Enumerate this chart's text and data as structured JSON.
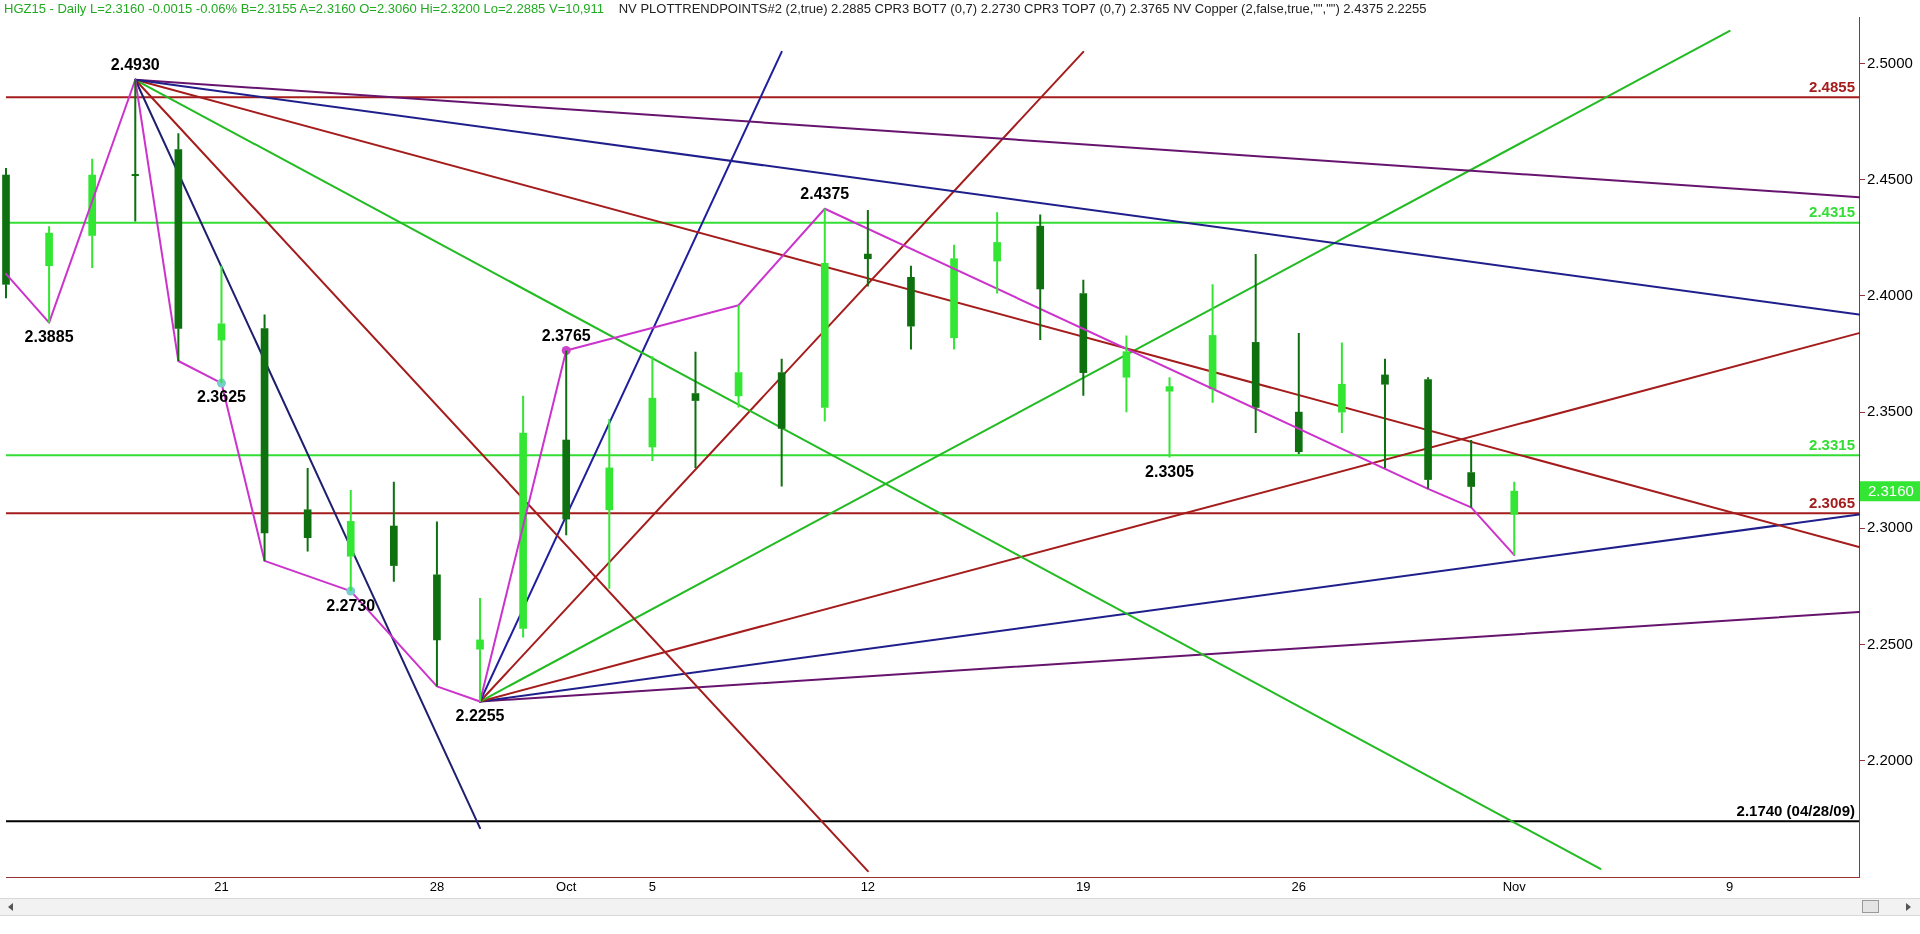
{
  "chart_data": {
    "type": "candlestick",
    "title": "HGZ15 - Daily L=2.3160 -0.0015 -0.06% B=2.3155 A=2.3160 O=2.3060 Hi=2.3200 Lo=2.2885 V=10,911",
    "subtitle": "NV PLOTTRENDPOINTS#2 (2,true) 2.2885 CPR3 BOT7 (0,7) 2.2730 CPR3 TOP7 (0,7) 2.3765 NV Copper (2,false,true,\"\",\"\") 2.4375 2.2255",
    "categories": [
      null,
      null,
      null,
      null,
      null,
      "21",
      null,
      null,
      null,
      null,
      "28",
      null,
      null,
      "Oct",
      null,
      "5",
      null,
      null,
      null,
      null,
      "12",
      null,
      null,
      null,
      null,
      "19",
      null,
      null,
      null,
      null,
      "26",
      null,
      null,
      null,
      null,
      "Nov",
      null,
      null,
      null,
      null,
      "9",
      null,
      null,
      null
    ],
    "ohlc": [
      [
        2.452,
        2.455,
        2.399,
        2.405
      ],
      [
        2.413,
        2.43,
        2.3885,
        2.427
      ],
      [
        2.426,
        2.459,
        2.412,
        2.452
      ],
      [
        2.452,
        2.493,
        2.432,
        2.452
      ],
      [
        2.463,
        2.47,
        2.372,
        2.386
      ],
      [
        2.381,
        2.413,
        2.3625,
        2.388
      ],
      [
        2.386,
        2.392,
        2.286,
        2.298
      ],
      [
        2.308,
        2.326,
        2.29,
        2.296
      ],
      [
        2.288,
        2.3165,
        2.273,
        2.303
      ],
      [
        2.301,
        2.32,
        2.277,
        2.284
      ],
      [
        2.28,
        2.303,
        2.232,
        2.252
      ],
      [
        2.248,
        2.27,
        2.2255,
        2.252
      ],
      [
        2.257,
        2.357,
        2.253,
        2.341
      ],
      [
        2.338,
        2.3765,
        2.297,
        2.304
      ],
      [
        2.308,
        2.347,
        2.274,
        2.326
      ],
      [
        2.335,
        2.374,
        2.329,
        2.356
      ],
      [
        2.358,
        2.376,
        2.326,
        2.355
      ],
      [
        2.357,
        2.396,
        2.352,
        2.367
      ],
      [
        2.367,
        2.373,
        2.318,
        2.343
      ],
      [
        2.352,
        2.4375,
        2.346,
        2.414
      ],
      [
        2.418,
        2.437,
        2.404,
        2.416
      ],
      [
        2.408,
        2.413,
        2.377,
        2.387
      ],
      [
        2.382,
        2.422,
        2.377,
        2.416
      ],
      [
        2.415,
        2.436,
        2.401,
        2.423
      ],
      [
        2.43,
        2.435,
        2.381,
        2.403
      ],
      [
        2.401,
        2.407,
        2.357,
        2.367
      ],
      [
        2.365,
        2.383,
        2.35,
        2.376
      ],
      [
        2.359,
        2.365,
        2.3305,
        2.361
      ],
      [
        2.36,
        2.405,
        2.354,
        2.383
      ],
      [
        2.38,
        2.418,
        2.341,
        2.352
      ],
      [
        2.35,
        2.384,
        2.332,
        2.333
      ],
      [
        2.35,
        2.38,
        2.341,
        2.362
      ],
      [
        2.366,
        2.373,
        2.326,
        2.362
      ],
      [
        2.364,
        2.365,
        2.317,
        2.321
      ],
      [
        2.324,
        2.338,
        2.309,
        2.318
      ],
      [
        2.306,
        2.32,
        2.2885,
        2.316
      ],
      null,
      null,
      null,
      null,
      null,
      null,
      null,
      null
    ],
    "colors": [
      "#0e700e",
      "#33e633",
      "#33e633",
      "#0e700e",
      "#0e700e",
      "#33e633",
      "#0e700e",
      "#0e700e",
      "#33e633",
      "#0e700e",
      "#0e700e",
      "#33e633",
      "#33e633",
      "#0e700e",
      "#33e633",
      "#33e633",
      "#0e700e",
      "#33e633",
      "#0e700e",
      "#33e633",
      "#0e700e",
      "#0e700e",
      "#33e633",
      "#33e633",
      "#0e700e",
      "#0e700e",
      "#33e633",
      "#33e633",
      "#33e633",
      "#0e700e",
      "#0e700e",
      "#33e633",
      "#0e700e",
      "#0e700e",
      "#0e700e",
      "#33e633",
      null,
      null,
      null,
      null,
      null,
      null,
      null,
      null
    ],
    "series": [
      {
        "type": "line",
        "color": "#1f1f8c",
        "values": [
          null,
          null,
          null,
          2.493,
          null,
          null,
          null,
          null,
          null,
          null,
          null,
          null,
          null,
          null,
          null,
          null,
          null,
          null,
          null,
          null,
          null,
          null,
          null,
          null,
          null,
          null,
          null,
          null,
          null,
          null,
          null,
          null,
          null,
          null,
          null,
          null,
          null,
          null,
          null,
          null,
          null,
          null,
          null,
          2.392
        ]
      },
      {
        "type": "line",
        "color": "#cc33cc",
        "values": [
          2.4095,
          2.3885,
          null,
          2.493,
          2.372,
          2.3625,
          2.286,
          null,
          2.273,
          null,
          2.232,
          2.2255,
          null,
          2.3765,
          null,
          null,
          null,
          2.396,
          null,
          2.4375,
          null,
          null,
          null,
          null,
          null,
          null,
          null,
          null,
          null,
          null,
          null,
          null,
          null,
          2.317,
          2.309,
          2.2885,
          null,
          null,
          null,
          null,
          null,
          null,
          null,
          null
        ]
      },
      {
        "type": "line",
        "color": "#1f1f70",
        "values": [
          null,
          null,
          null,
          2.493,
          null,
          null,
          null,
          null,
          null,
          null,
          null,
          2.171,
          null,
          null,
          null,
          null,
          null,
          null,
          null,
          null,
          null,
          null,
          null,
          null,
          null,
          null,
          null,
          null,
          null,
          null,
          null,
          null,
          null,
          null,
          null,
          null,
          null,
          null,
          null,
          null,
          null,
          null,
          null,
          null
        ]
      },
      {
        "type": "line",
        "color": "#a51c1c",
        "values": [
          null,
          null,
          null,
          2.493,
          null,
          null,
          null,
          null,
          null,
          null,
          null,
          null,
          null,
          null,
          null,
          null,
          null,
          null,
          null,
          null,
          2.1525,
          null,
          null,
          null,
          null,
          null,
          null,
          null,
          null,
          null,
          null,
          null,
          null,
          null,
          null,
          null,
          null,
          null,
          null,
          null,
          null,
          null,
          null,
          null
        ]
      },
      {
        "type": "line",
        "color": "#22bb22",
        "values": [
          null,
          null,
          null,
          2.493,
          null,
          null,
          null,
          null,
          null,
          null,
          null,
          null,
          null,
          null,
          null,
          null,
          null,
          null,
          null,
          null,
          null,
          null,
          null,
          null,
          null,
          null,
          null,
          null,
          null,
          null,
          null,
          null,
          null,
          null,
          null,
          null,
          null,
          2.1535,
          null,
          null,
          null,
          null,
          null,
          null
        ]
      },
      {
        "type": "line",
        "color": "#a51c1c",
        "values": [
          null,
          null,
          null,
          2.493,
          null,
          null,
          null,
          null,
          null,
          null,
          null,
          null,
          null,
          null,
          null,
          null,
          null,
          null,
          null,
          null,
          null,
          null,
          null,
          null,
          null,
          null,
          null,
          null,
          null,
          null,
          null,
          null,
          null,
          null,
          null,
          null,
          null,
          null,
          null,
          null,
          null,
          null,
          null,
          2.292
        ]
      },
      {
        "type": "line",
        "color": "#66146e",
        "values": [
          null,
          null,
          null,
          2.493,
          null,
          null,
          null,
          null,
          null,
          null,
          null,
          null,
          null,
          null,
          null,
          null,
          null,
          null,
          null,
          null,
          null,
          null,
          null,
          null,
          null,
          null,
          null,
          null,
          null,
          null,
          null,
          null,
          null,
          null,
          null,
          null,
          null,
          null,
          null,
          null,
          null,
          null,
          null,
          2.4425
        ]
      },
      {
        "type": "line",
        "color": "#1f1f9e",
        "values": [
          null,
          null,
          null,
          null,
          null,
          null,
          null,
          null,
          null,
          null,
          null,
          2.2255,
          null,
          null,
          null,
          null,
          null,
          null,
          2.505,
          null,
          null,
          null,
          null,
          null,
          null,
          null,
          null,
          null,
          null,
          null,
          null,
          null,
          null,
          null,
          null,
          null,
          null,
          null,
          null,
          null,
          null,
          null,
          null,
          null
        ]
      },
      {
        "type": "line",
        "color": "#a51c1c",
        "values": [
          null,
          null,
          null,
          null,
          null,
          null,
          null,
          null,
          null,
          null,
          null,
          2.2255,
          null,
          null,
          null,
          null,
          null,
          null,
          null,
          null,
          null,
          null,
          null,
          null,
          null,
          2.505,
          null,
          null,
          null,
          null,
          null,
          null,
          null,
          null,
          null,
          null,
          null,
          null,
          null,
          null,
          null,
          null,
          null,
          null
        ]
      },
      {
        "type": "line",
        "color": "#22bb22",
        "values": [
          null,
          null,
          null,
          null,
          null,
          null,
          null,
          null,
          null,
          null,
          null,
          2.2255,
          null,
          null,
          null,
          null,
          null,
          null,
          null,
          null,
          null,
          null,
          null,
          null,
          null,
          null,
          null,
          null,
          null,
          null,
          null,
          null,
          null,
          null,
          null,
          null,
          null,
          null,
          null,
          null,
          2.514,
          null,
          null,
          null
        ]
      },
      {
        "type": "line",
        "color": "#a51c1c",
        "values": [
          null,
          null,
          null,
          null,
          null,
          null,
          null,
          null,
          null,
          null,
          null,
          2.2255,
          null,
          null,
          null,
          null,
          null,
          null,
          null,
          null,
          null,
          null,
          null,
          null,
          null,
          null,
          null,
          null,
          null,
          null,
          null,
          null,
          null,
          null,
          null,
          null,
          null,
          null,
          null,
          null,
          null,
          null,
          null,
          2.384
        ]
      },
      {
        "type": "line",
        "color": "#1f1f8c",
        "values": [
          null,
          null,
          null,
          null,
          null,
          null,
          null,
          null,
          null,
          null,
          null,
          2.2255,
          null,
          null,
          null,
          null,
          null,
          null,
          null,
          null,
          null,
          null,
          null,
          null,
          null,
          null,
          null,
          null,
          null,
          null,
          null,
          null,
          null,
          null,
          null,
          null,
          null,
          null,
          null,
          null,
          null,
          null,
          null,
          2.306
        ]
      },
      {
        "type": "line",
        "color": "#66146e",
        "values": [
          null,
          null,
          null,
          null,
          null,
          null,
          null,
          null,
          null,
          null,
          null,
          2.2255,
          null,
          null,
          null,
          null,
          null,
          null,
          null,
          null,
          null,
          null,
          null,
          null,
          null,
          null,
          null,
          null,
          null,
          null,
          null,
          null,
          null,
          null,
          null,
          null,
          null,
          null,
          null,
          null,
          null,
          null,
          null,
          2.264
        ]
      },
      {
        "type": "scatter",
        "marker": "circle",
        "color": "#77cccc",
        "values": [
          null,
          null,
          null,
          null,
          null,
          2.3625,
          null,
          null,
          2.273,
          null,
          null,
          null,
          null,
          null,
          null,
          null,
          null,
          null,
          null,
          null,
          null,
          null,
          null,
          null,
          null,
          null,
          null,
          null,
          null,
          null,
          null,
          null,
          null,
          null,
          null,
          null,
          null,
          null,
          null,
          null,
          null,
          null,
          null,
          null
        ]
      },
      {
        "type": "scatter",
        "marker": "circle",
        "color": "#cc44cc",
        "values": [
          null,
          null,
          null,
          null,
          null,
          null,
          null,
          null,
          null,
          null,
          null,
          null,
          null,
          2.3765,
          null,
          null,
          null,
          null,
          null,
          null,
          null,
          null,
          null,
          null,
          null,
          null,
          null,
          null,
          null,
          null,
          null,
          null,
          null,
          null,
          null,
          null,
          null,
          null,
          null,
          null,
          null,
          null,
          null,
          null
        ]
      }
    ],
    "ylim": [
      2.15,
      2.52
    ],
    "yticks": [
      {
        "value": 2.2,
        "label": "2.2000"
      },
      {
        "value": 2.25,
        "label": "2.2500"
      },
      {
        "value": 2.3,
        "label": "2.3000"
      },
      {
        "value": 2.35,
        "label": "2.3500"
      },
      {
        "value": 2.4,
        "label": "2.4000"
      },
      {
        "value": 2.45,
        "label": "2.4500"
      },
      {
        "value": 2.5,
        "label": "2.5000"
      }
    ],
    "ref_lines": [
      {
        "axis": "y",
        "value": 2.4855,
        "label": "2.4855",
        "color": "#a51c1c"
      },
      {
        "axis": "y",
        "value": 2.4315,
        "label": "2.4315",
        "color": "#33dd33"
      },
      {
        "axis": "y",
        "value": 2.3315,
        "label": "2.3315",
        "color": "#33dd33"
      },
      {
        "axis": "y",
        "value": 2.3065,
        "label": "2.3065",
        "color": "#a51c1c"
      },
      {
        "axis": "y",
        "value": 2.174,
        "label": "2.1740 (04/28/09)",
        "color": "#000000"
      }
    ],
    "annotations": [
      {
        "text": "2.4930",
        "y": 2.493
      },
      {
        "text": "2.3885",
        "y": 2.3885
      },
      {
        "text": "2.3625",
        "y": 2.3625
      },
      {
        "text": "2.2730",
        "y": 2.273
      },
      {
        "text": "2.2255",
        "y": 2.2255
      },
      {
        "text": "2.3765",
        "y": 2.3765
      },
      {
        "text": "2.4375",
        "y": 2.4375
      },
      {
        "text": "2.3305",
        "y": 2.3305
      },
      "2.3160"
    ]
  }
}
